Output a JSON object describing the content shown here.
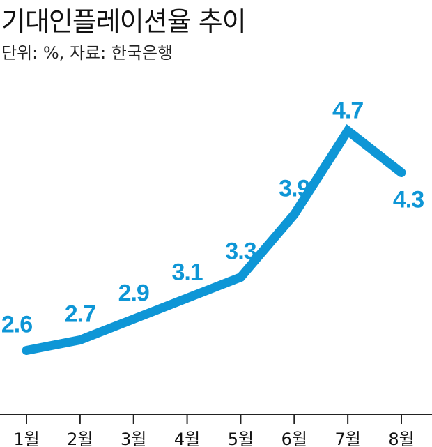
{
  "chart_data": {
    "type": "line",
    "title": "기대인플레이션율 추이",
    "subtitle": "단위: %, 자료: 한국은행",
    "categories": [
      "1월",
      "2월",
      "3월",
      "4월",
      "5월",
      "6월",
      "7월",
      "8월"
    ],
    "values": [
      2.6,
      2.7,
      2.9,
      3.1,
      3.3,
      3.9,
      4.7,
      4.3
    ],
    "data_labels": [
      "2.6",
      "2.7",
      "2.9",
      "3.1",
      "3.3",
      "3.9",
      "4.7",
      "4.3"
    ],
    "ylim": [
      2.0,
      4.95
    ],
    "grid": false,
    "legend": "none",
    "line_color": "#0e96d6",
    "axis_color": "#222222"
  }
}
